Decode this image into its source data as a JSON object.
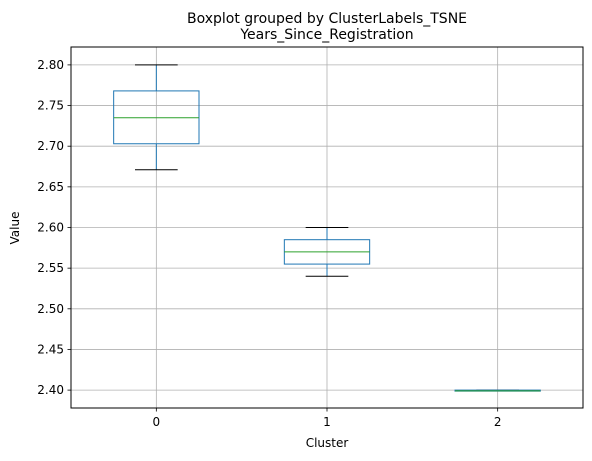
{
  "chart_data": {
    "type": "boxplot",
    "suptitle": "Boxplot grouped by ClusterLabels_TSNE",
    "title": "Years_Since_Registration",
    "xlabel": "Cluster",
    "ylabel": "Value",
    "ylim": [
      2.378,
      2.822
    ],
    "yticks": [
      "2.40",
      "2.45",
      "2.50",
      "2.55",
      "2.60",
      "2.65",
      "2.70",
      "2.75",
      "2.80"
    ],
    "grid": true,
    "categories": [
      "0",
      "1",
      "2"
    ],
    "boxes": [
      {
        "category": "0",
        "whisker_low": 2.671,
        "q1": 2.703,
        "median": 2.735,
        "q3": 2.768,
        "whisker_high": 2.8
      },
      {
        "category": "1",
        "whisker_low": 2.54,
        "q1": 2.555,
        "median": 2.57,
        "q3": 2.585,
        "whisker_high": 2.6
      },
      {
        "category": "2",
        "whisker_low": 2.399,
        "q1": 2.399,
        "median": 2.399,
        "q3": 2.4,
        "whisker_high": 2.4
      }
    ],
    "colors": {
      "box": "#1f77b4",
      "median": "#2ca02c",
      "whisker": "#000000",
      "grid": "#b0b0b0"
    }
  }
}
